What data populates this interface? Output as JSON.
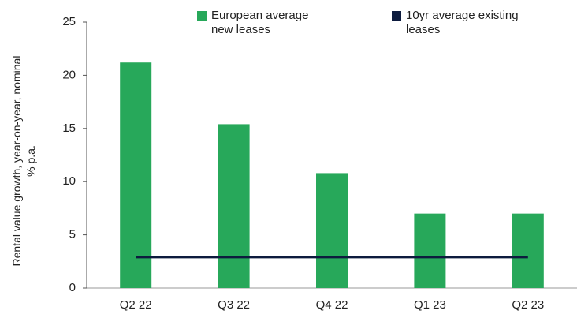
{
  "chart_data": {
    "type": "bar",
    "ylabel": "Rental value growth, year-on-year, nominal % p.a.",
    "categories": [
      "Q2 22",
      "Q3 22",
      "Q4 22",
      "Q1 23",
      "Q2 23"
    ],
    "series": [
      {
        "name": "European average new leases",
        "color": "#27a85a",
        "type": "bar",
        "values": [
          21.2,
          15.4,
          10.8,
          7.0,
          7.0
        ]
      },
      {
        "name": "10yr average existing leases",
        "color": "#0d1b3e",
        "type": "line",
        "values": [
          2.9,
          2.9,
          2.9,
          2.9,
          2.9
        ]
      }
    ],
    "ylim": [
      0,
      25
    ],
    "yticks": [
      0,
      5,
      10,
      15,
      20,
      25
    ],
    "grid": false
  }
}
